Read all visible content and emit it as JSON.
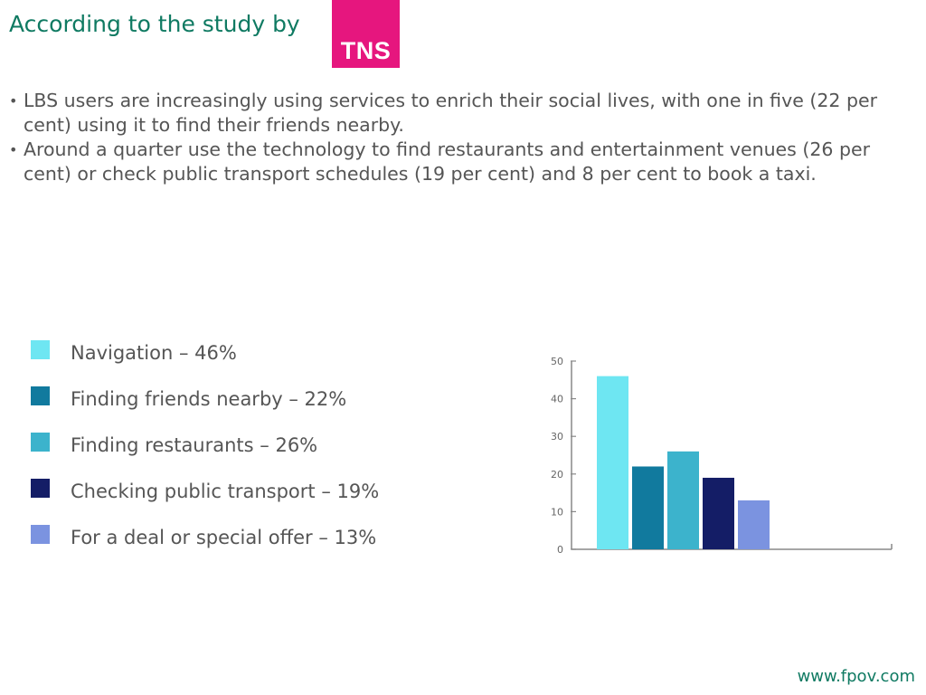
{
  "heading": "According to the study by",
  "logo": {
    "text": "TNS",
    "color": "#e6167e"
  },
  "bullets": [
    "LBS users are increasingly using services to enrich their social lives, with one in five (22 per cent) using it to find their friends nearby.",
    "Around a quarter use the technology to find restaurants and entertainment venues (26 per cent) or check public transport schedules (19 per cent) and 8 per cent to book a taxi."
  ],
  "legend": [
    {
      "label": "Navigation – 46%",
      "color": "#6ee6f2"
    },
    {
      "label": "Finding friends nearby – 22%",
      "color": "#117a9e"
    },
    {
      "label": "Finding restaurants – 26%",
      "color": "#3cb3cc"
    },
    {
      "label": "Checking public transport – 19%",
      "color": "#141d66"
    },
    {
      "label": "For a deal or special offer – 13%",
      "color": "#7b93e0"
    }
  ],
  "chart_data": {
    "type": "bar",
    "categories": [
      "Navigation",
      "Finding friends nearby",
      "Finding restaurants",
      "Checking public transport",
      "For a deal or special offer"
    ],
    "values": [
      46,
      22,
      26,
      19,
      13
    ],
    "colors": [
      "#6ee6f2",
      "#117a9e",
      "#3cb3cc",
      "#141d66",
      "#7b93e0"
    ],
    "yticks": [
      0,
      10,
      20,
      30,
      40,
      50
    ],
    "ylim": [
      0,
      50
    ],
    "grid": false,
    "legend": "left"
  },
  "footer": "www.fpov.com"
}
